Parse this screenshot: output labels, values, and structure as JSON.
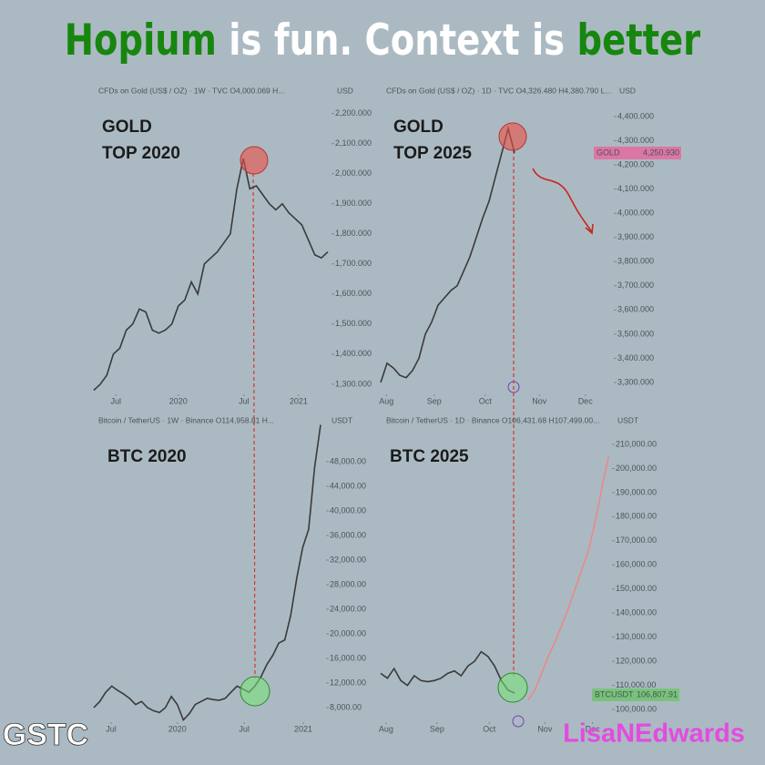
{
  "header": {
    "title_parts": [
      {
        "text": "Hopium",
        "color": "#17860f"
      },
      {
        "text": " is fun. Context is ",
        "color": "#ffffff"
      },
      {
        "text": "better",
        "color": "#17860f"
      }
    ]
  },
  "watermarks": [
    "GSTC",
    "LisaNEdwards"
  ],
  "chart_data": [
    {
      "type": "line",
      "subtitle": "CFDs on Gold (US$ / OZ) · 1W · TVC  O4,000.069  H...",
      "unit": "USD",
      "annotation": [
        "GOLD",
        "TOP 2020"
      ],
      "series": [
        {
          "color": "#3a3a3a",
          "values": [
            1280,
            1300,
            1330,
            1400,
            1420,
            1480,
            1500,
            1550,
            1540,
            1480,
            1470,
            1480,
            1500,
            1560,
            1580,
            1640,
            1600,
            1700,
            1720,
            1740,
            1770,
            1800,
            1950,
            2050,
            1950,
            1960,
            1930,
            1900,
            1880,
            1900,
            1870,
            1850,
            1830,
            1780,
            1730,
            1720,
            1740
          ]
        }
      ],
      "xlim": [
        0,
        36
      ],
      "xticks": [
        {
          "value": 3.4,
          "label": "Jul"
        },
        {
          "value": 13,
          "label": "2020"
        },
        {
          "value": 23.1,
          "label": "Jul"
        },
        {
          "value": 31.5,
          "label": "2021"
        }
      ],
      "ylim": [
        1230,
        2290
      ],
      "yticks": [
        {
          "value": 1300,
          "label": "1,300.000"
        },
        {
          "value": 1400,
          "label": "1,400.000"
        },
        {
          "value": 1500,
          "label": "1,500.000"
        },
        {
          "value": 1600,
          "label": "1,600.000"
        },
        {
          "value": 1700,
          "label": "1,700.000"
        },
        {
          "value": 1800,
          "label": "1,800.000"
        },
        {
          "value": 1900,
          "label": "1,900.000"
        },
        {
          "value": 2000,
          "label": "2,000.000"
        },
        {
          "value": 2100,
          "label": "2,100.000"
        },
        {
          "value": 2200,
          "label": "2,200.000"
        }
      ]
    },
    {
      "type": "line",
      "subtitle": "CFDs on Gold (US$ / OZ) · 1D · TVC  O4,326.480  H4,380.790  L...",
      "unit": "USD",
      "annotation": [
        "GOLD",
        "TOP 2025"
      ],
      "price_tag": {
        "label": "GOLD",
        "value": "4,250.930",
        "color": "#e46aa0"
      },
      "series": [
        {
          "color": "#3a3a3a",
          "values": [
            3300,
            3380,
            3360,
            3330,
            3320,
            3350,
            3400,
            3500,
            3550,
            3620,
            3650,
            3680,
            3700,
            3760,
            3820,
            3900,
            3980,
            4050,
            4150,
            4250,
            4350,
            4250
          ]
        }
      ],
      "xlim": [
        0,
        36
      ],
      "xticks": [
        {
          "value": 0.9,
          "label": "Aug"
        },
        {
          "value": 8.4,
          "label": "Sep"
        },
        {
          "value": 16.4,
          "label": "Oct"
        },
        {
          "value": 24.9,
          "label": "Nov"
        },
        {
          "value": 32.1,
          "label": "Dec"
        }
      ],
      "ylim": [
        3206,
        4524
      ],
      "yticks": [
        {
          "value": 3300,
          "label": "3,300.000"
        },
        {
          "value": 3400,
          "label": "3,400.000"
        },
        {
          "value": 3500,
          "label": "3,500.000"
        },
        {
          "value": 3600,
          "label": "3,600.000"
        },
        {
          "value": 3700,
          "label": "3,700.000"
        },
        {
          "value": 3800,
          "label": "3,800.000"
        },
        {
          "value": 3900,
          "label": "3,900.000"
        },
        {
          "value": 4000,
          "label": "4,000.000"
        },
        {
          "value": 4100,
          "label": "4,100.000"
        },
        {
          "value": 4200,
          "label": "4,200.000"
        },
        {
          "value": 4300,
          "label": "4,300.000"
        },
        {
          "value": 4400,
          "label": "4,400.000"
        }
      ]
    },
    {
      "type": "line",
      "subtitle": "Bitcoin / TetherUS · 1W · Binance  O114,958.81  H...",
      "unit": "USDT",
      "annotation": [
        "BTC 2020"
      ],
      "series": [
        {
          "color": "#3a3a3a",
          "values": [
            8000,
            9000,
            10500,
            11500,
            10800,
            10200,
            9500,
            8500,
            9000,
            8000,
            7500,
            7200,
            8000,
            9800,
            8500,
            6000,
            7000,
            8500,
            9000,
            9500,
            9300,
            9200,
            9500,
            10500,
            11500,
            11000,
            10500,
            11500,
            13000,
            15000,
            16500,
            18500,
            19000,
            23000,
            29000,
            34000,
            37000,
            47000,
            54000
          ]
        }
      ],
      "xlim": [
        0,
        38
      ],
      "xticks": [
        {
          "value": 2.9,
          "label": "Jul"
        },
        {
          "value": 14,
          "label": "2020"
        },
        {
          "value": 25.2,
          "label": "Jul"
        },
        {
          "value": 35.1,
          "label": "2021"
        }
      ],
      "ylim": [
        3850,
        55400
      ],
      "yticks": [
        {
          "value": 8000,
          "label": "8,000.00"
        },
        {
          "value": 12000,
          "label": "12,000.00"
        },
        {
          "value": 16000,
          "label": "16,000.00"
        },
        {
          "value": 20000,
          "label": "20,000.00"
        },
        {
          "value": 24000,
          "label": "24,000.00"
        },
        {
          "value": 28000,
          "label": "28,000.00"
        },
        {
          "value": 32000,
          "label": "32,000.00"
        },
        {
          "value": 36000,
          "label": "36,000.00"
        },
        {
          "value": 40000,
          "label": "40,000.00"
        },
        {
          "value": 44000,
          "label": "44,000.00"
        },
        {
          "value": 48000,
          "label": "48,000.00"
        }
      ]
    },
    {
      "type": "line",
      "subtitle": "Bitcoin / TetherUS · 1D · Binance  O106,431.68  H107,499.00...",
      "unit": "USDT",
      "annotation": [
        "BTC 2025"
      ],
      "price_tag": {
        "label": "BTCUSDT",
        "value": "106,807.91",
        "color": "#6fc46f"
      },
      "series": [
        {
          "color": "#3a3a3a",
          "values": [
            115000,
            113000,
            117000,
            112000,
            110000,
            114000,
            112000,
            111500,
            112000,
            113000,
            115000,
            116000,
            114000,
            118000,
            120000,
            124000,
            122000,
            118000,
            112000,
            108000,
            106800,
            null,
            null,
            null,
            null,
            null,
            null,
            null,
            null,
            null,
            null,
            null,
            null,
            null,
            null
          ]
        },
        {
          "color": "#e8898b",
          "values": [
            null,
            null,
            null,
            null,
            null,
            null,
            null,
            null,
            null,
            null,
            null,
            null,
            null,
            null,
            null,
            null,
            null,
            null,
            null,
            null,
            null,
            null,
            104000,
            108000,
            115000,
            122000,
            128000,
            135000,
            142000,
            150000,
            158000,
            166000,
            178000,
            192000,
            205000
          ]
        }
      ],
      "xlim": [
        0,
        36
      ],
      "xticks": [
        {
          "value": 0.8,
          "label": "Aug"
        },
        {
          "value": 8.4,
          "label": "Sep"
        },
        {
          "value": 16.2,
          "label": "Oct"
        },
        {
          "value": 24.5,
          "label": "Nov"
        },
        {
          "value": 31.6,
          "label": "Dec"
        }
      ],
      "ylim": [
        90200,
        221700
      ],
      "yticks": [
        {
          "value": 100000,
          "label": "100,000.00"
        },
        {
          "value": 110000,
          "label": "110,000.00"
        },
        {
          "value": 120000,
          "label": "120,000.00"
        },
        {
          "value": 130000,
          "label": "130,000.00"
        },
        {
          "value": 140000,
          "label": "140,000.00"
        },
        {
          "value": 150000,
          "label": "150,000.00"
        },
        {
          "value": 160000,
          "label": "160,000.00"
        },
        {
          "value": 170000,
          "label": "170,000.00"
        },
        {
          "value": 180000,
          "label": "180,000.00"
        },
        {
          "value": 190000,
          "label": "190,000.00"
        },
        {
          "value": 200000,
          "label": "200,000.00"
        },
        {
          "value": 210000,
          "label": "210,000.00"
        }
      ]
    }
  ]
}
